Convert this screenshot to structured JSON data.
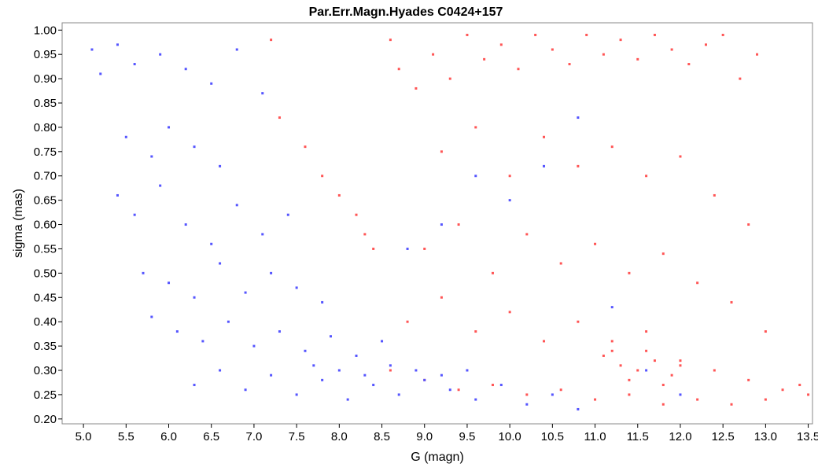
{
  "chart_data": {
    "type": "scatter",
    "title": "Par.Err.Magn.Hyades  C0424+157",
    "xlabel": "G (magn)",
    "ylabel": "sigma (mas)",
    "xlim": [
      4.75,
      13.55
    ],
    "ylim": [
      0.19,
      1.015
    ],
    "x_ticks": [
      "5.0",
      "5.5",
      "6.0",
      "6.5",
      "7.0",
      "7.5",
      "8.0",
      "8.5",
      "9.0",
      "9.5",
      "10.0",
      "10.5",
      "11.0",
      "11.5",
      "12.0",
      "12.5",
      "13.0",
      "13.5"
    ],
    "y_ticks": [
      "0.20",
      "0.25",
      "0.30",
      "0.35",
      "0.40",
      "0.45",
      "0.50",
      "0.55",
      "0.60",
      "0.65",
      "0.70",
      "0.75",
      "0.80",
      "0.85",
      "0.90",
      "0.95",
      "1.00"
    ],
    "grid": false,
    "legend": "none",
    "series": [
      {
        "color": "#ff5555",
        "points": [
          [
            7.2,
            0.98
          ],
          [
            7.3,
            0.82
          ],
          [
            7.6,
            0.76
          ],
          [
            7.8,
            0.7
          ],
          [
            8.0,
            0.66
          ],
          [
            8.2,
            0.62
          ],
          [
            8.3,
            0.58
          ],
          [
            8.4,
            0.55
          ],
          [
            8.6,
            0.98
          ],
          [
            8.7,
            0.92
          ],
          [
            8.9,
            0.88
          ],
          [
            9.1,
            0.95
          ],
          [
            9.3,
            0.9
          ],
          [
            9.5,
            0.99
          ],
          [
            9.7,
            0.94
          ],
          [
            9.9,
            0.97
          ],
          [
            10.1,
            0.92
          ],
          [
            10.3,
            0.99
          ],
          [
            10.5,
            0.96
          ],
          [
            10.7,
            0.93
          ],
          [
            10.9,
            0.99
          ],
          [
            11.1,
            0.95
          ],
          [
            11.3,
            0.98
          ],
          [
            11.5,
            0.94
          ],
          [
            11.7,
            0.99
          ],
          [
            11.9,
            0.96
          ],
          [
            12.1,
            0.93
          ],
          [
            12.3,
            0.97
          ],
          [
            12.5,
            0.99
          ],
          [
            12.7,
            0.9
          ],
          [
            12.9,
            0.95
          ],
          [
            9.2,
            0.75
          ],
          [
            9.6,
            0.8
          ],
          [
            10.0,
            0.7
          ],
          [
            10.4,
            0.78
          ],
          [
            10.8,
            0.72
          ],
          [
            11.2,
            0.76
          ],
          [
            11.6,
            0.7
          ],
          [
            12.0,
            0.74
          ],
          [
            12.4,
            0.66
          ],
          [
            12.8,
            0.6
          ],
          [
            9.0,
            0.55
          ],
          [
            9.4,
            0.6
          ],
          [
            9.8,
            0.5
          ],
          [
            10.2,
            0.58
          ],
          [
            10.6,
            0.52
          ],
          [
            11.0,
            0.56
          ],
          [
            11.4,
            0.5
          ],
          [
            11.8,
            0.54
          ],
          [
            12.2,
            0.48
          ],
          [
            12.6,
            0.44
          ],
          [
            13.0,
            0.38
          ],
          [
            8.8,
            0.4
          ],
          [
            9.2,
            0.45
          ],
          [
            9.6,
            0.38
          ],
          [
            10.0,
            0.42
          ],
          [
            10.4,
            0.36
          ],
          [
            10.8,
            0.4
          ],
          [
            11.2,
            0.34
          ],
          [
            11.6,
            0.38
          ],
          [
            12.0,
            0.32
          ],
          [
            12.4,
            0.3
          ],
          [
            12.8,
            0.28
          ],
          [
            13.2,
            0.26
          ],
          [
            13.4,
            0.27
          ],
          [
            13.5,
            0.25
          ],
          [
            8.6,
            0.3
          ],
          [
            9.0,
            0.28
          ],
          [
            9.4,
            0.26
          ],
          [
            9.8,
            0.27
          ],
          [
            10.2,
            0.25
          ],
          [
            10.6,
            0.26
          ],
          [
            11.0,
            0.24
          ],
          [
            11.4,
            0.25
          ],
          [
            11.8,
            0.23
          ],
          [
            12.2,
            0.24
          ],
          [
            12.6,
            0.23
          ],
          [
            13.0,
            0.24
          ],
          [
            11.1,
            0.33
          ],
          [
            11.3,
            0.31
          ],
          [
            11.5,
            0.3
          ],
          [
            11.7,
            0.32
          ],
          [
            11.9,
            0.29
          ],
          [
            11.2,
            0.36
          ],
          [
            11.6,
            0.34
          ],
          [
            12.0,
            0.31
          ],
          [
            11.4,
            0.28
          ],
          [
            11.8,
            0.27
          ]
        ]
      },
      {
        "color": "#5555ff",
        "points": [
          [
            5.1,
            0.96
          ],
          [
            5.4,
            0.97
          ],
          [
            5.6,
            0.93
          ],
          [
            5.9,
            0.95
          ],
          [
            6.2,
            0.92
          ],
          [
            6.5,
            0.89
          ],
          [
            6.8,
            0.96
          ],
          [
            7.1,
            0.87
          ],
          [
            5.2,
            0.91
          ],
          [
            5.5,
            0.78
          ],
          [
            5.8,
            0.74
          ],
          [
            6.0,
            0.8
          ],
          [
            6.3,
            0.76
          ],
          [
            6.6,
            0.72
          ],
          [
            5.4,
            0.66
          ],
          [
            5.6,
            0.62
          ],
          [
            5.9,
            0.68
          ],
          [
            6.2,
            0.6
          ],
          [
            6.5,
            0.56
          ],
          [
            6.8,
            0.64
          ],
          [
            7.1,
            0.58
          ],
          [
            7.4,
            0.62
          ],
          [
            5.7,
            0.5
          ],
          [
            6.0,
            0.48
          ],
          [
            6.3,
            0.45
          ],
          [
            6.6,
            0.52
          ],
          [
            6.9,
            0.46
          ],
          [
            7.2,
            0.5
          ],
          [
            7.5,
            0.47
          ],
          [
            7.8,
            0.44
          ],
          [
            5.8,
            0.41
          ],
          [
            6.1,
            0.38
          ],
          [
            6.4,
            0.36
          ],
          [
            6.7,
            0.4
          ],
          [
            7.0,
            0.35
          ],
          [
            7.3,
            0.38
          ],
          [
            7.6,
            0.34
          ],
          [
            7.9,
            0.37
          ],
          [
            8.2,
            0.33
          ],
          [
            8.5,
            0.36
          ],
          [
            6.3,
            0.27
          ],
          [
            6.6,
            0.3
          ],
          [
            6.9,
            0.26
          ],
          [
            7.2,
            0.29
          ],
          [
            7.5,
            0.25
          ],
          [
            7.8,
            0.28
          ],
          [
            8.1,
            0.24
          ],
          [
            8.4,
            0.27
          ],
          [
            8.7,
            0.25
          ],
          [
            9.0,
            0.28
          ],
          [
            9.3,
            0.26
          ],
          [
            9.6,
            0.24
          ],
          [
            9.9,
            0.27
          ],
          [
            10.2,
            0.23
          ],
          [
            10.5,
            0.25
          ],
          [
            10.8,
            0.22
          ],
          [
            8.0,
            0.3
          ],
          [
            8.3,
            0.29
          ],
          [
            8.6,
            0.31
          ],
          [
            8.9,
            0.3
          ],
          [
            9.2,
            0.29
          ],
          [
            9.5,
            0.3
          ],
          [
            7.7,
            0.31
          ],
          [
            8.8,
            0.55
          ],
          [
            9.2,
            0.6
          ],
          [
            9.6,
            0.7
          ],
          [
            10.0,
            0.65
          ],
          [
            10.4,
            0.72
          ],
          [
            10.8,
            0.82
          ],
          [
            11.2,
            0.43
          ],
          [
            11.6,
            0.3
          ],
          [
            12.0,
            0.25
          ]
        ]
      }
    ]
  }
}
